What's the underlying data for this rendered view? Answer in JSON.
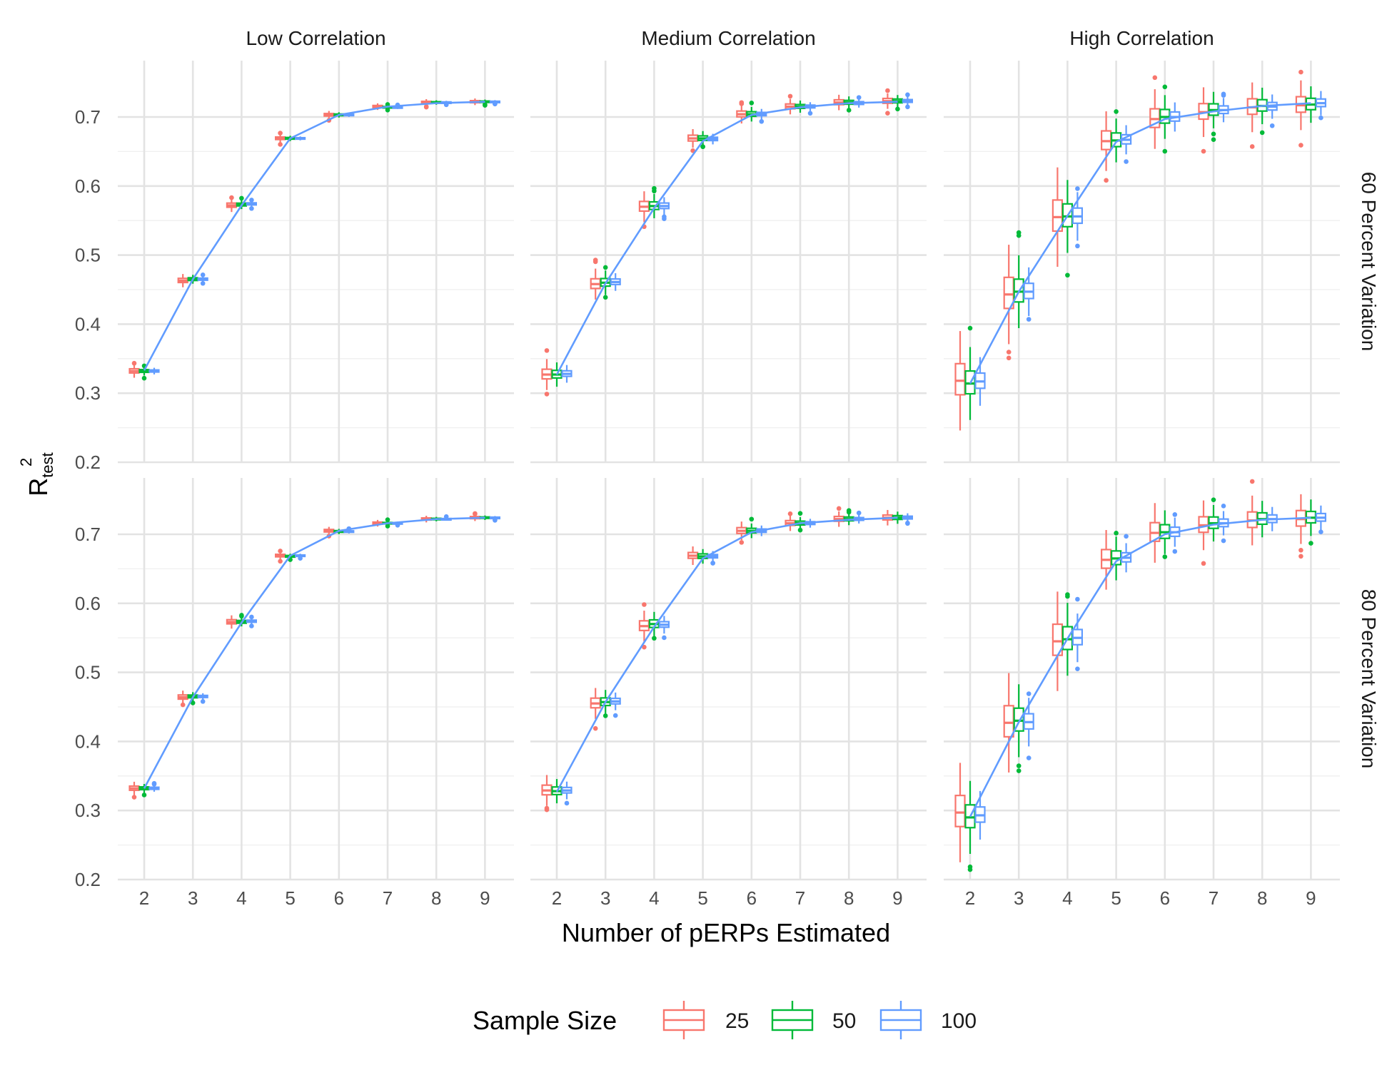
{
  "chart_data": {
    "type": "box",
    "xlabel": "Number of pERPs Estimated",
    "ylabel_main": "R",
    "ylabel_sup": "2",
    "ylabel_sub": "test",
    "x": [
      2,
      3,
      4,
      5,
      6,
      7,
      8,
      9
    ],
    "ylim": [
      0.2,
      0.75
    ],
    "yticks": [
      "0.2",
      "0.3",
      "0.4",
      "0.5",
      "0.6",
      "0.7"
    ],
    "columns": [
      "Low Correlation",
      "Medium Correlation",
      "High Correlation"
    ],
    "rows": [
      "60 Percent Variation",
      "80 Percent Variation"
    ],
    "legend": {
      "title": "Sample Size",
      "placement": "bottom",
      "items": [
        {
          "label": "25",
          "color": "#F8766D"
        },
        {
          "label": "50",
          "color": "#00BA38"
        },
        {
          "label": "100",
          "color": "#619CFF"
        }
      ]
    },
    "trend_color": "#619CFF",
    "panels": [
      {
        "row": 0,
        "col": 0,
        "medians": {
          "25": [
            0.332,
            0.463,
            0.572,
            0.669,
            0.703,
            0.715,
            0.721,
            0.722
          ],
          "50": [
            0.332,
            0.465,
            0.573,
            0.669,
            0.703,
            0.714,
            0.721,
            0.722
          ],
          "100": [
            0.332,
            0.465,
            0.574,
            0.669,
            0.703,
            0.714,
            0.721,
            0.722
          ]
        },
        "spread": {
          "25": 0.006,
          "50": 0.004,
          "100": 0.003
        },
        "trend": [
          0.333,
          0.465,
          0.572,
          0.669,
          0.703,
          0.715,
          0.72,
          0.722
        ]
      },
      {
        "row": 0,
        "col": 1,
        "medians": {
          "25": [
            0.327,
            0.458,
            0.57,
            0.669,
            0.704,
            0.715,
            0.721,
            0.723
          ],
          "50": [
            0.327,
            0.46,
            0.571,
            0.669,
            0.704,
            0.715,
            0.721,
            0.723
          ],
          "100": [
            0.328,
            0.461,
            0.571,
            0.668,
            0.704,
            0.715,
            0.72,
            0.723
          ]
        },
        "spread": {
          "25": 0.014,
          "50": 0.011,
          "100": 0.008
        },
        "trend": [
          0.327,
          0.459,
          0.568,
          0.665,
          0.703,
          0.714,
          0.72,
          0.722
        ]
      },
      {
        "row": 0,
        "col": 2,
        "medians": {
          "25": [
            0.318,
            0.443,
            0.555,
            0.665,
            0.697,
            0.707,
            0.714,
            0.717
          ],
          "50": [
            0.314,
            0.447,
            0.556,
            0.666,
            0.7,
            0.71,
            0.716,
            0.718
          ],
          "100": [
            0.317,
            0.447,
            0.556,
            0.667,
            0.7,
            0.71,
            0.715,
            0.72
          ]
        },
        "spread": {
          "25": 0.045,
          "50": 0.033,
          "100": 0.022
        },
        "trend": [
          0.314,
          0.447,
          0.557,
          0.664,
          0.697,
          0.708,
          0.716,
          0.72
        ]
      },
      {
        "row": 1,
        "col": 0,
        "medians": {
          "25": [
            0.332,
            0.464,
            0.573,
            0.669,
            0.705,
            0.716,
            0.722,
            0.724
          ],
          "50": [
            0.332,
            0.465,
            0.573,
            0.668,
            0.704,
            0.716,
            0.722,
            0.724
          ],
          "100": [
            0.332,
            0.465,
            0.574,
            0.669,
            0.704,
            0.716,
            0.722,
            0.724
          ]
        },
        "spread": {
          "25": 0.006,
          "50": 0.004,
          "100": 0.003
        },
        "trend": [
          0.332,
          0.464,
          0.572,
          0.669,
          0.705,
          0.716,
          0.722,
          0.724
        ]
      },
      {
        "row": 1,
        "col": 1,
        "medians": {
          "25": [
            0.329,
            0.455,
            0.567,
            0.669,
            0.705,
            0.716,
            0.722,
            0.724
          ],
          "50": [
            0.328,
            0.457,
            0.57,
            0.668,
            0.705,
            0.716,
            0.722,
            0.724
          ],
          "100": [
            0.329,
            0.458,
            0.569,
            0.668,
            0.705,
            0.716,
            0.722,
            0.724
          ]
        },
        "spread": {
          "25": 0.014,
          "50": 0.011,
          "100": 0.008
        },
        "trend": [
          0.327,
          0.457,
          0.566,
          0.665,
          0.703,
          0.716,
          0.721,
          0.724
        ]
      },
      {
        "row": 1,
        "col": 2,
        "medians": {
          "25": [
            0.297,
            0.427,
            0.545,
            0.663,
            0.702,
            0.713,
            0.72,
            0.722
          ],
          "50": [
            0.29,
            0.43,
            0.548,
            0.665,
            0.703,
            0.716,
            0.722,
            0.724
          ],
          "100": [
            0.293,
            0.428,
            0.55,
            0.666,
            0.703,
            0.716,
            0.722,
            0.724
          ]
        },
        "spread": {
          "25": 0.045,
          "50": 0.033,
          "100": 0.022
        },
        "trend": [
          0.291,
          0.428,
          0.549,
          0.661,
          0.7,
          0.714,
          0.721,
          0.724
        ]
      }
    ]
  }
}
